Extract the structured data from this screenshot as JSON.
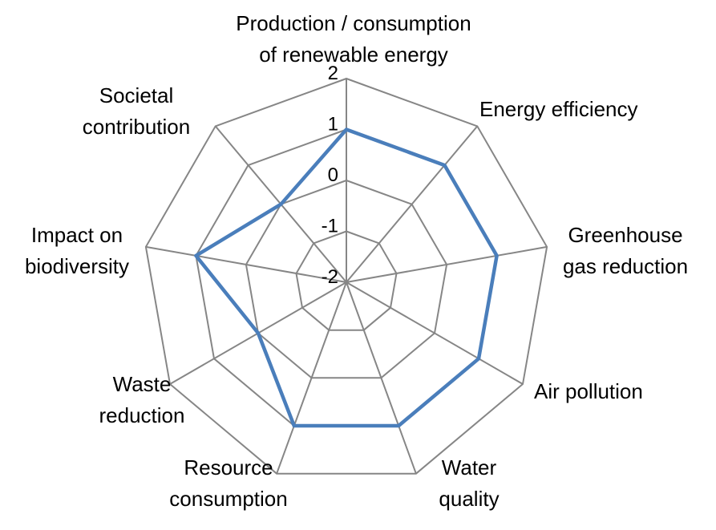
{
  "chart_data": {
    "type": "radar",
    "categories": [
      "Production / consumption of renewable energy",
      "Energy efficiency",
      "Greenhouse gas reduction",
      "Air pollution",
      "Water quality",
      "Resource consumption",
      "Waste reduction",
      "Impact on biodiversity",
      "Societal contribution"
    ],
    "category_lines": [
      [
        "Production / consumption",
        "of renewable energy"
      ],
      [
        "Energy efficiency"
      ],
      [
        "Greenhouse",
        "gas reduction"
      ],
      [
        "Air pollution"
      ],
      [
        "Water",
        "quality"
      ],
      [
        "Resource",
        "consumption"
      ],
      [
        "Waste",
        "reduction"
      ],
      [
        "Impact on",
        "biodiversity"
      ],
      [
        "Societal",
        "contribution"
      ]
    ],
    "series": [
      {
        "values": [
          1,
          1,
          1,
          1,
          1,
          1,
          0,
          1,
          0
        ],
        "color": "#4A7EBB"
      }
    ],
    "rlim": [
      -2,
      2
    ],
    "ticks": [
      2,
      1,
      0,
      -1,
      -2
    ],
    "tick_labels": [
      "2",
      "1",
      "0",
      "-1",
      "-2"
    ],
    "grid": true,
    "grid_color": "#868686",
    "legend": "none"
  }
}
